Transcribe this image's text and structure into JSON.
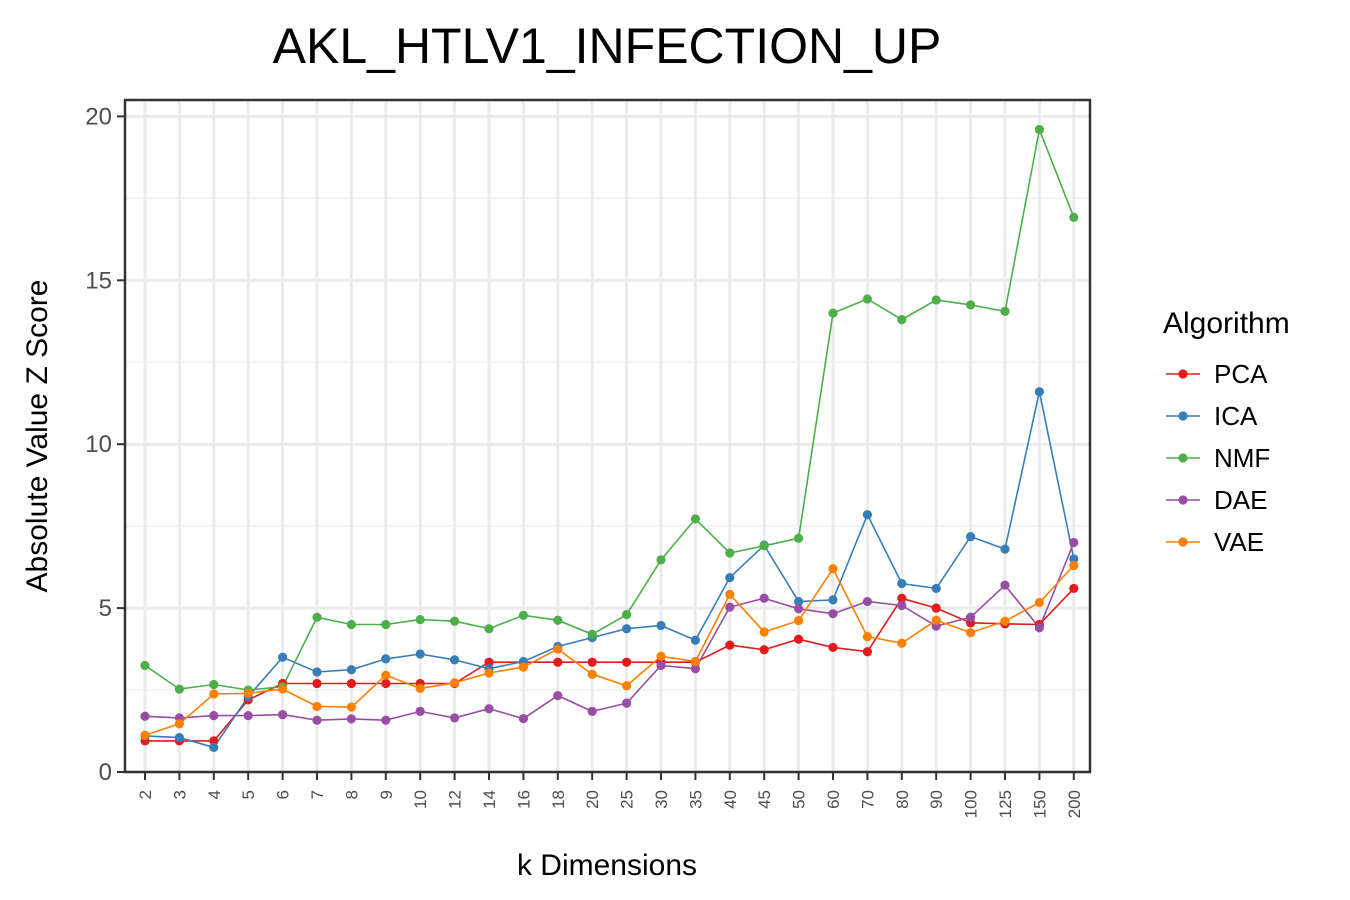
{
  "chart_data": {
    "type": "line",
    "title": "AKL_HTLV1_INFECTION_UP",
    "xlabel": "k Dimensions",
    "ylabel": "Absolute Value Z Score",
    "x": [
      "2",
      "3",
      "4",
      "5",
      "6",
      "7",
      "8",
      "9",
      "10",
      "12",
      "14",
      "16",
      "18",
      "20",
      "25",
      "30",
      "35",
      "40",
      "45",
      "50",
      "60",
      "70",
      "80",
      "90",
      "100",
      "125",
      "150",
      "200"
    ],
    "ylim": [
      0,
      20.5
    ],
    "yticks": [
      "0",
      "5",
      "10",
      "15",
      "20"
    ],
    "grid": true,
    "legend_title": "Algorithm",
    "legend_position": "right",
    "series": [
      {
        "name": "PCA",
        "color": "#e41a1c",
        "values": [
          0.95,
          0.95,
          0.95,
          2.2,
          2.7,
          2.7,
          2.7,
          2.7,
          2.7,
          2.7,
          3.35,
          3.35,
          3.35,
          3.35,
          3.35,
          3.35,
          3.35,
          3.87,
          3.73,
          4.05,
          3.8,
          3.67,
          5.3,
          5.0,
          4.55,
          4.52,
          4.5,
          5.6
        ]
      },
      {
        "name": "ICA",
        "color": "#377eb8",
        "values": [
          1.1,
          1.05,
          0.75,
          2.3,
          3.5,
          3.05,
          3.12,
          3.45,
          3.6,
          3.42,
          3.15,
          3.37,
          3.83,
          4.1,
          4.37,
          4.47,
          4.02,
          5.93,
          6.92,
          5.2,
          5.25,
          7.85,
          5.75,
          5.6,
          7.18,
          6.8,
          11.6,
          6.5
        ]
      },
      {
        "name": "NMF",
        "color": "#4daf4a",
        "values": [
          3.25,
          2.53,
          2.67,
          2.5,
          2.6,
          4.72,
          4.5,
          4.5,
          4.65,
          4.6,
          4.37,
          4.78,
          4.63,
          4.2,
          4.8,
          6.47,
          7.72,
          6.68,
          6.9,
          7.13,
          14.0,
          14.43,
          13.8,
          14.4,
          14.25,
          14.05,
          19.6,
          16.92
        ]
      },
      {
        "name": "DAE",
        "color": "#984ea3",
        "values": [
          1.7,
          1.65,
          1.72,
          1.72,
          1.75,
          1.58,
          1.62,
          1.58,
          1.85,
          1.65,
          1.93,
          1.63,
          2.33,
          1.85,
          2.1,
          3.25,
          3.15,
          5.03,
          5.3,
          4.98,
          4.83,
          5.2,
          5.08,
          4.45,
          4.72,
          5.7,
          4.4,
          7.0
        ]
      },
      {
        "name": "VAE",
        "color": "#ff7f00",
        "values": [
          1.12,
          1.47,
          2.38,
          2.4,
          2.53,
          2.0,
          1.98,
          2.95,
          2.55,
          2.72,
          3.02,
          3.2,
          3.75,
          2.98,
          2.63,
          3.53,
          3.37,
          5.42,
          4.27,
          4.62,
          6.2,
          4.13,
          3.93,
          4.63,
          4.25,
          4.6,
          5.17,
          6.3
        ]
      }
    ]
  }
}
